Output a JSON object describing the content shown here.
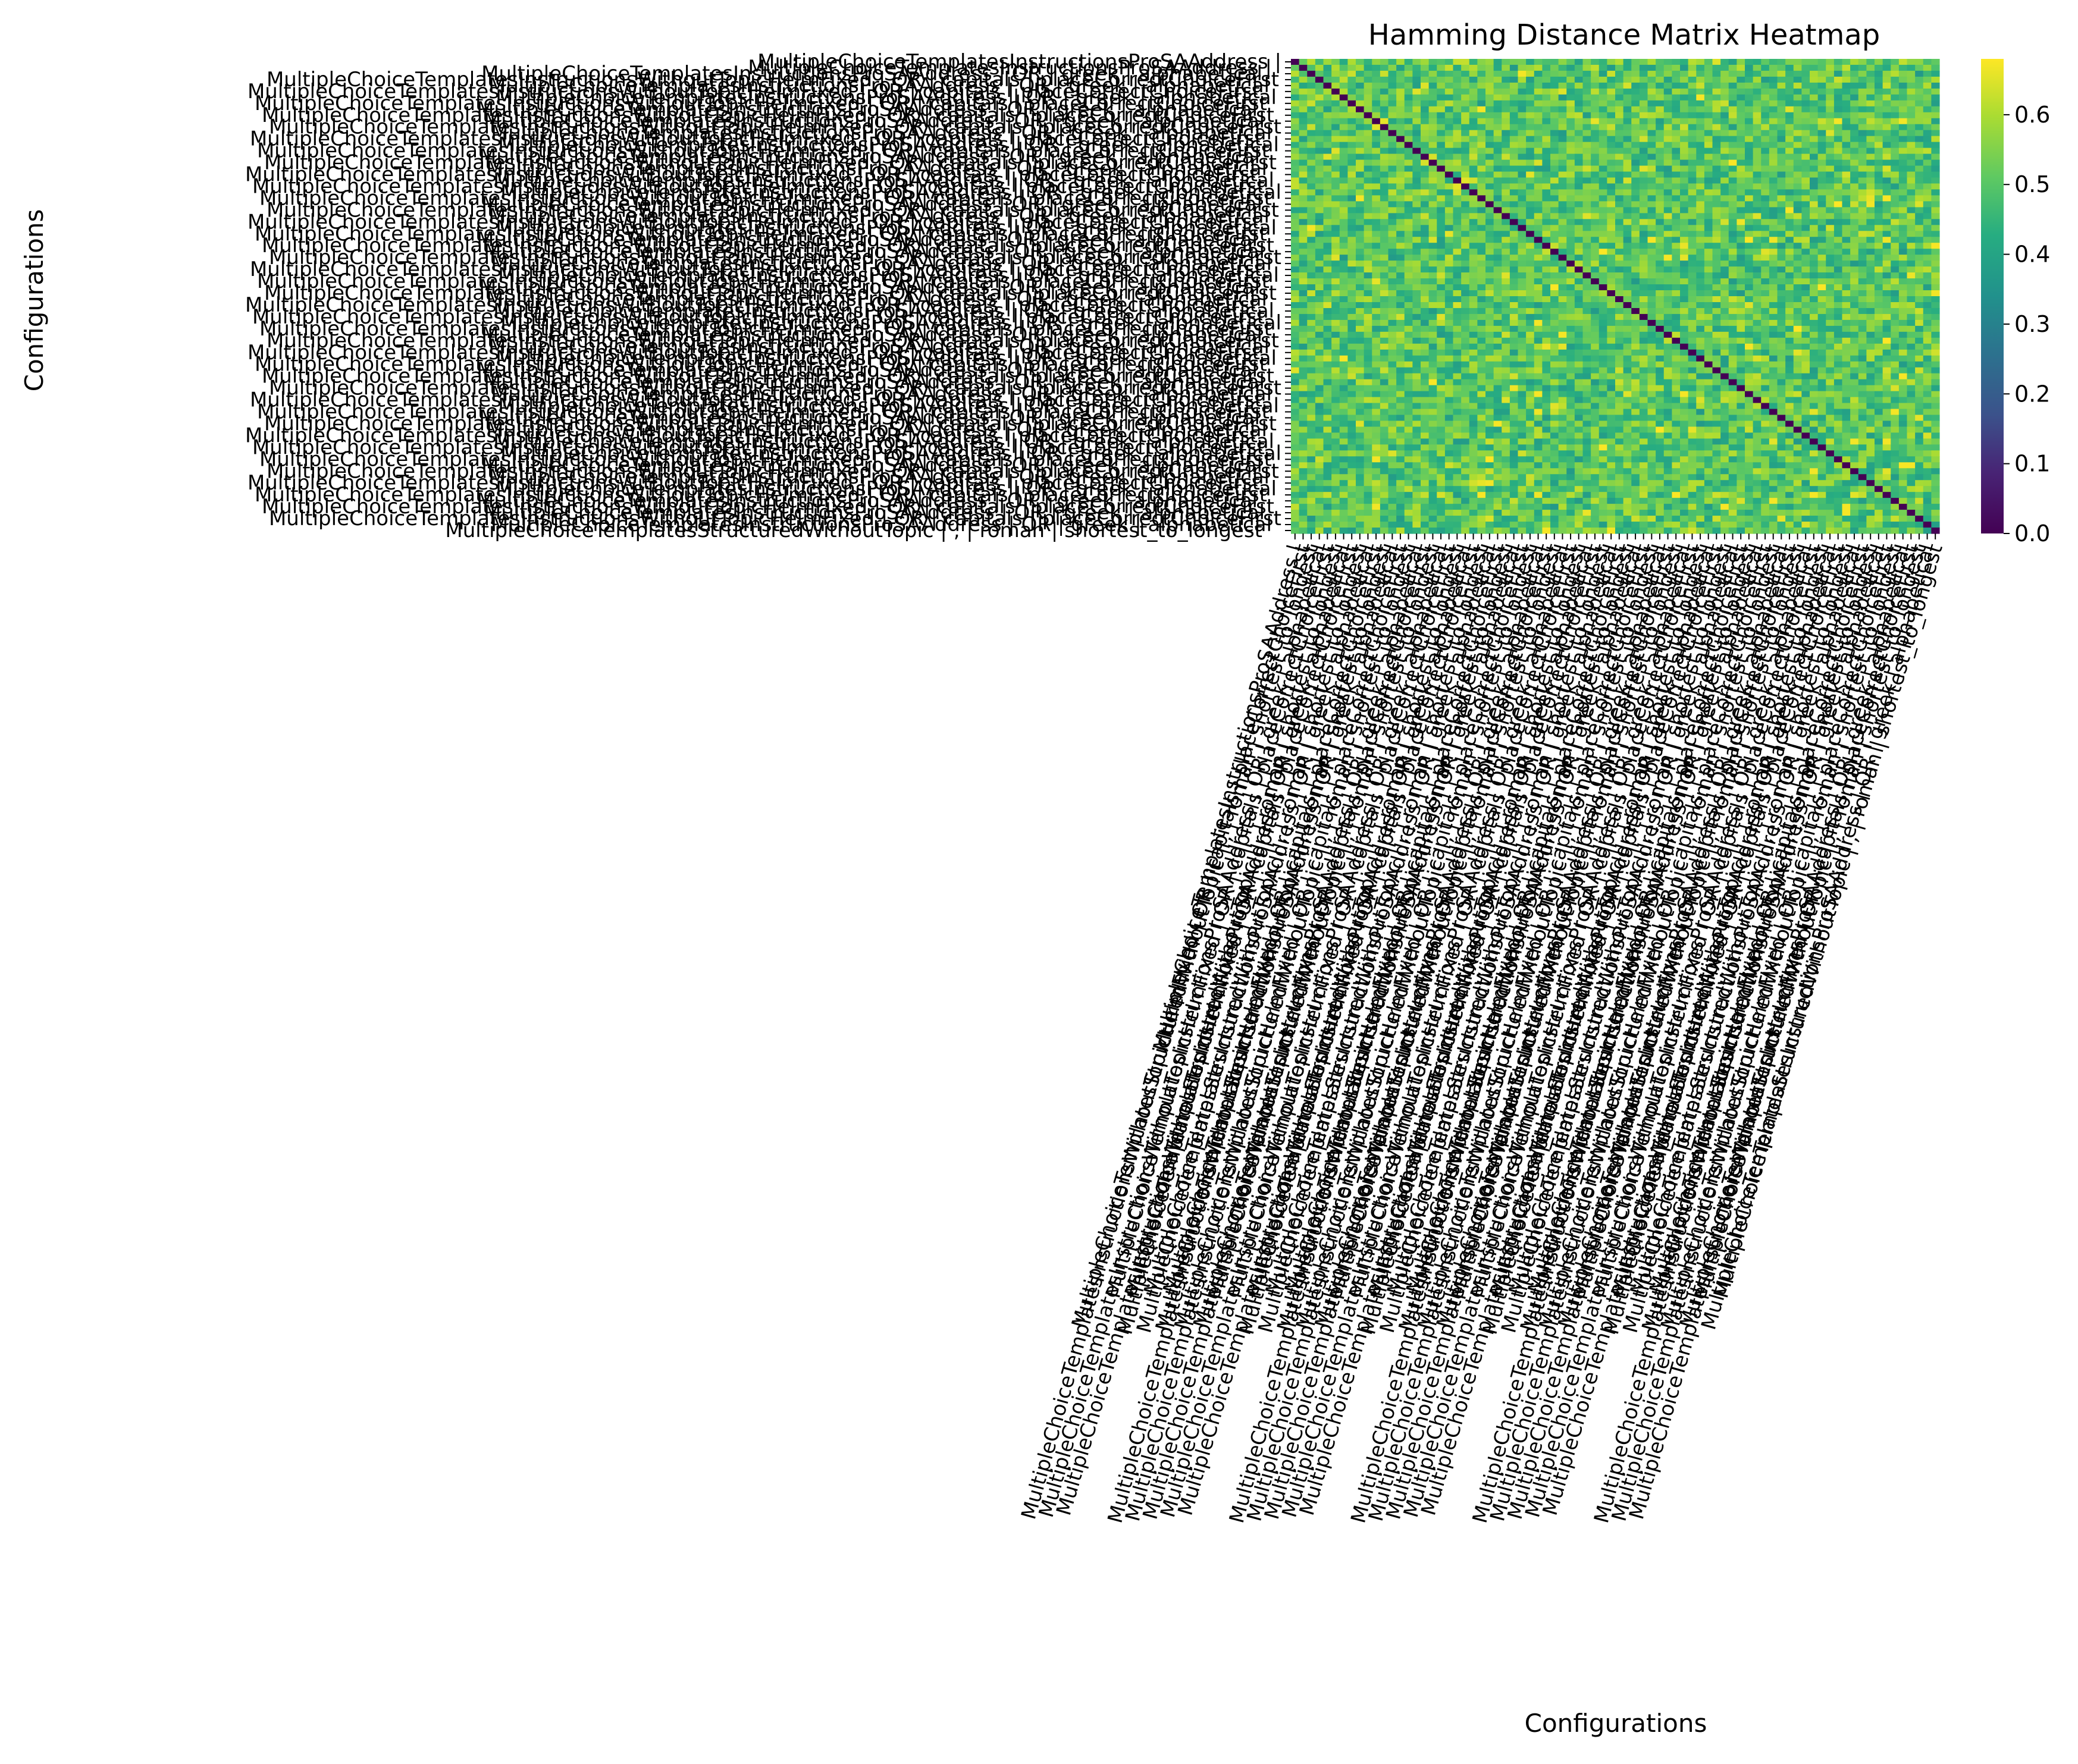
{
  "chart_data": {
    "type": "heatmap",
    "title": "Hamming Distance Matrix Heatmap",
    "xlabel": "Configurations",
    "ylabel": "Configurations",
    "colormap": "viridis",
    "value_range": [
      0.0,
      0.68
    ],
    "colorbar_ticks": [
      "0.0",
      "0.1",
      "0.2",
      "0.3",
      "0.4",
      "0.5",
      "0.6"
    ],
    "matrix_size": 80,
    "visible_labels": [
      "MultipleChoiceTemplatesInstructionsProSAAddress |",
      "MultipleChoiceTemplatesInstructionsProSAAddress |",
      "MultipleChoiceTemplatesInstructionsProSAAddress | OR | greek | alphabetical",
      "MultipleChoiceTemplatesInstructionsWithoutTopicHelmFixed | OR | capitals | placeCorrectChoiceFirst",
      "MultipleChoiceTemplatesStructuredWithoutTopic | , | roman | shortest_to_longest"
    ],
    "diagonal_value": 0.0,
    "off_diagonal_typical_range": [
      0.4,
      0.6
    ],
    "colors": {
      "viridis_min": "#440154",
      "viridis_mid": "#21918c",
      "viridis_max": "#fde725"
    }
  }
}
